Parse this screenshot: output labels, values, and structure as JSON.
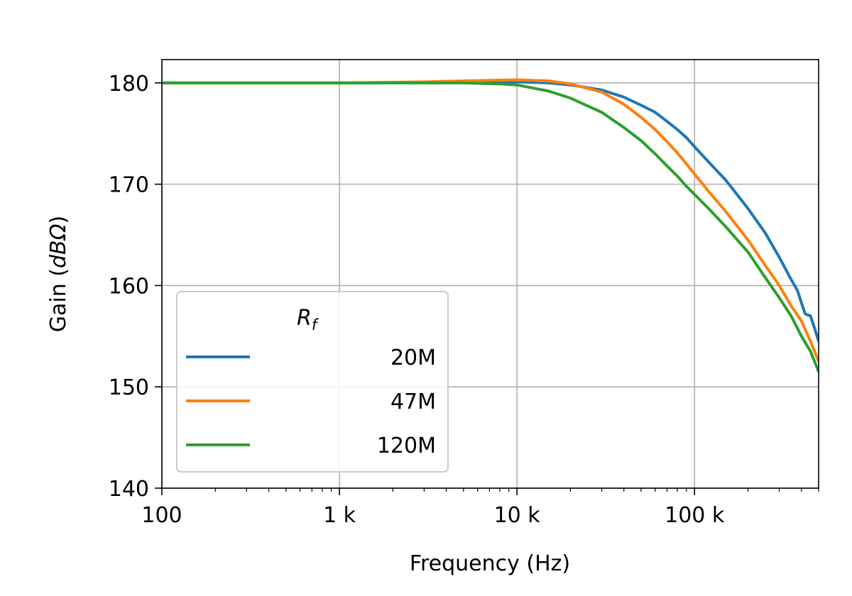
{
  "chart_data": {
    "type": "line",
    "xlabel": "Frequency (Hz)",
    "ylabel_main": "Gain (",
    "ylabel_unit": "dBΩ",
    "ylabel_close": ")",
    "xscale": "log",
    "xlim": [
      100,
      500000
    ],
    "ylim": [
      140,
      182.3
    ],
    "grid": true,
    "x_ticks": [
      {
        "value": 100,
        "label": "100"
      },
      {
        "value": 1000,
        "label": "1 k"
      },
      {
        "value": 10000,
        "label": "10 k"
      },
      {
        "value": 100000,
        "label": "100 k"
      }
    ],
    "y_ticks": [
      {
        "value": 140,
        "label": "140"
      },
      {
        "value": 150,
        "label": "150"
      },
      {
        "value": 160,
        "label": "160"
      },
      {
        "value": 170,
        "label": "170"
      },
      {
        "value": 180,
        "label": "180"
      }
    ],
    "legend": {
      "placement": "lower-left",
      "title_main": "R",
      "title_sub": "f"
    },
    "series": [
      {
        "name": "20M",
        "color": "#1f77b4",
        "points": [
          [
            100,
            180.0
          ],
          [
            1000,
            180.0
          ],
          [
            5000,
            180.05
          ],
          [
            10000,
            180.1
          ],
          [
            15000,
            180.0
          ],
          [
            20000,
            179.8
          ],
          [
            30000,
            179.3
          ],
          [
            40000,
            178.6
          ],
          [
            50000,
            177.8
          ],
          [
            60000,
            177.1
          ],
          [
            70000,
            176.2
          ],
          [
            80000,
            175.4
          ],
          [
            90000,
            174.6
          ],
          [
            100000,
            173.7
          ],
          [
            120000,
            172.2
          ],
          [
            150000,
            170.4
          ],
          [
            200000,
            167.6
          ],
          [
            250000,
            165.2
          ],
          [
            300000,
            162.8
          ],
          [
            350000,
            160.6
          ],
          [
            380000,
            159.5
          ],
          [
            400000,
            158.3
          ],
          [
            420000,
            157.2
          ],
          [
            450000,
            157.0
          ],
          [
            480000,
            155.5
          ],
          [
            500000,
            154.5
          ]
        ]
      },
      {
        "name": "47M",
        "color": "#ff7f0e",
        "points": [
          [
            100,
            180.0
          ],
          [
            1000,
            180.0
          ],
          [
            3000,
            180.1
          ],
          [
            5000,
            180.2
          ],
          [
            10000,
            180.3
          ],
          [
            15000,
            180.2
          ],
          [
            20000,
            179.9
          ],
          [
            30000,
            179.1
          ],
          [
            40000,
            177.9
          ],
          [
            50000,
            176.6
          ],
          [
            60000,
            175.4
          ],
          [
            70000,
            174.2
          ],
          [
            80000,
            173.1
          ],
          [
            90000,
            172.0
          ],
          [
            100000,
            171.0
          ],
          [
            120000,
            169.3
          ],
          [
            150000,
            167.3
          ],
          [
            200000,
            164.5
          ],
          [
            250000,
            162.0
          ],
          [
            300000,
            160.0
          ],
          [
            350000,
            158.0
          ],
          [
            400000,
            156.5
          ],
          [
            450000,
            154.5
          ],
          [
            500000,
            152.5
          ]
        ]
      },
      {
        "name": "120M",
        "color": "#2ca02c",
        "points": [
          [
            100,
            180.0
          ],
          [
            1000,
            180.0
          ],
          [
            5000,
            180.0
          ],
          [
            8000,
            179.9
          ],
          [
            10000,
            179.8
          ],
          [
            15000,
            179.2
          ],
          [
            20000,
            178.5
          ],
          [
            30000,
            177.1
          ],
          [
            40000,
            175.6
          ],
          [
            50000,
            174.3
          ],
          [
            60000,
            173.0
          ],
          [
            70000,
            171.8
          ],
          [
            80000,
            170.8
          ],
          [
            90000,
            169.8
          ],
          [
            100000,
            169.0
          ],
          [
            120000,
            167.6
          ],
          [
            150000,
            165.8
          ],
          [
            200000,
            163.3
          ],
          [
            250000,
            160.8
          ],
          [
            300000,
            158.8
          ],
          [
            350000,
            157.0
          ],
          [
            400000,
            155.0
          ],
          [
            450000,
            153.5
          ],
          [
            500000,
            151.5
          ]
        ]
      }
    ]
  }
}
